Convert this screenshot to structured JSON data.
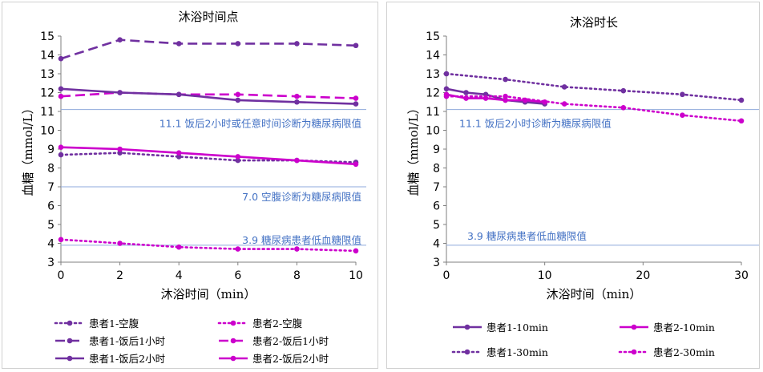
{
  "chart_data": [
    {
      "type": "line",
      "title": "沐浴时间点",
      "xlabel": "沐浴时间（min）",
      "ylabel": "血糖（mmol/L）",
      "xlim": [
        0,
        10
      ],
      "ylim": [
        3,
        15
      ],
      "xticks": [
        0,
        2,
        4,
        6,
        8,
        10
      ],
      "yticks": [
        3,
        4,
        5,
        6,
        7,
        8,
        9,
        10,
        11,
        12,
        13,
        14,
        15
      ],
      "grid": false,
      "legend": "bottom",
      "reference_lines": [
        {
          "y": 11.1,
          "label": "11.1 饭后2小时或任意时间诊断为糖尿病限值"
        },
        {
          "y": 7.0,
          "label": "7.0 空腹诊断为糖尿病限值"
        },
        {
          "y": 3.9,
          "label": "3.9 糖尿病患者低血糖限值"
        }
      ],
      "series": [
        {
          "name": "患者1-空腹",
          "color": "#7030a0",
          "style": "dotted",
          "x": [
            0,
            2,
            4,
            6,
            8,
            10
          ],
          "values": [
            8.7,
            8.8,
            8.6,
            8.4,
            8.4,
            8.3
          ]
        },
        {
          "name": "患者2-空腹",
          "color": "#cc00cc",
          "style": "dotted",
          "x": [
            0,
            2,
            4,
            6,
            8,
            10
          ],
          "values": [
            4.2,
            4.0,
            3.8,
            3.7,
            3.7,
            3.6
          ]
        },
        {
          "name": "患者1-饭后1小时",
          "color": "#7030a0",
          "style": "dashed",
          "x": [
            0,
            2,
            4,
            6,
            8,
            10
          ],
          "values": [
            13.8,
            14.8,
            14.6,
            14.6,
            14.6,
            14.5
          ]
        },
        {
          "name": "患者2-饭后1小时",
          "color": "#cc00cc",
          "style": "dashed",
          "x": [
            0,
            2,
            4,
            6,
            8,
            10
          ],
          "values": [
            11.8,
            12.0,
            11.9,
            11.9,
            11.8,
            11.7
          ]
        },
        {
          "name": "患者1-饭后2小时",
          "color": "#7030a0",
          "style": "solid",
          "x": [
            0,
            2,
            4,
            6,
            8,
            10
          ],
          "values": [
            12.2,
            12.0,
            11.9,
            11.6,
            11.5,
            11.4
          ]
        },
        {
          "name": "患者2-饭后2小时",
          "color": "#cc00cc",
          "style": "solid",
          "x": [
            0,
            2,
            4,
            6,
            8,
            10
          ],
          "values": [
            9.1,
            9.0,
            8.8,
            8.6,
            8.4,
            8.2
          ]
        }
      ]
    },
    {
      "type": "line",
      "title": "沐浴时长",
      "xlabel": "沐浴时间（min）",
      "ylabel": "血糖（mmol/L）",
      "xlim": [
        0,
        30
      ],
      "ylim": [
        3,
        15
      ],
      "xticks": [
        0,
        10,
        20,
        30
      ],
      "yticks": [
        3,
        4,
        5,
        6,
        7,
        8,
        9,
        10,
        11,
        12,
        13,
        14,
        15
      ],
      "grid": false,
      "legend": "bottom",
      "reference_lines": [
        {
          "y": 11.1,
          "label": "11.1 饭后2小时诊断为糖尿病限值"
        },
        {
          "y": 3.9,
          "label": "3.9 糖尿病患者低血糖限值"
        }
      ],
      "series": [
        {
          "name": "患者1-10min",
          "color": "#7030a0",
          "style": "solid",
          "x": [
            0,
            2,
            4,
            6,
            8,
            10
          ],
          "values": [
            12.2,
            12.0,
            11.9,
            11.6,
            11.5,
            11.4
          ]
        },
        {
          "name": "患者2-10min",
          "color": "#cc00cc",
          "style": "solid",
          "x": [
            0,
            2,
            4,
            6,
            8,
            10
          ],
          "values": [
            11.9,
            11.7,
            11.7,
            11.6,
            11.6,
            11.5
          ]
        },
        {
          "name": "患者1-30min",
          "color": "#7030a0",
          "style": "dotted",
          "x": [
            0,
            6,
            12,
            18,
            24,
            30
          ],
          "values": [
            13.0,
            12.7,
            12.3,
            12.1,
            11.9,
            11.6
          ]
        },
        {
          "name": "患者2-30min",
          "color": "#cc00cc",
          "style": "dotted",
          "x": [
            0,
            6,
            12,
            18,
            24,
            30
          ],
          "values": [
            11.8,
            11.8,
            11.4,
            11.2,
            10.8,
            10.5
          ]
        }
      ]
    }
  ]
}
